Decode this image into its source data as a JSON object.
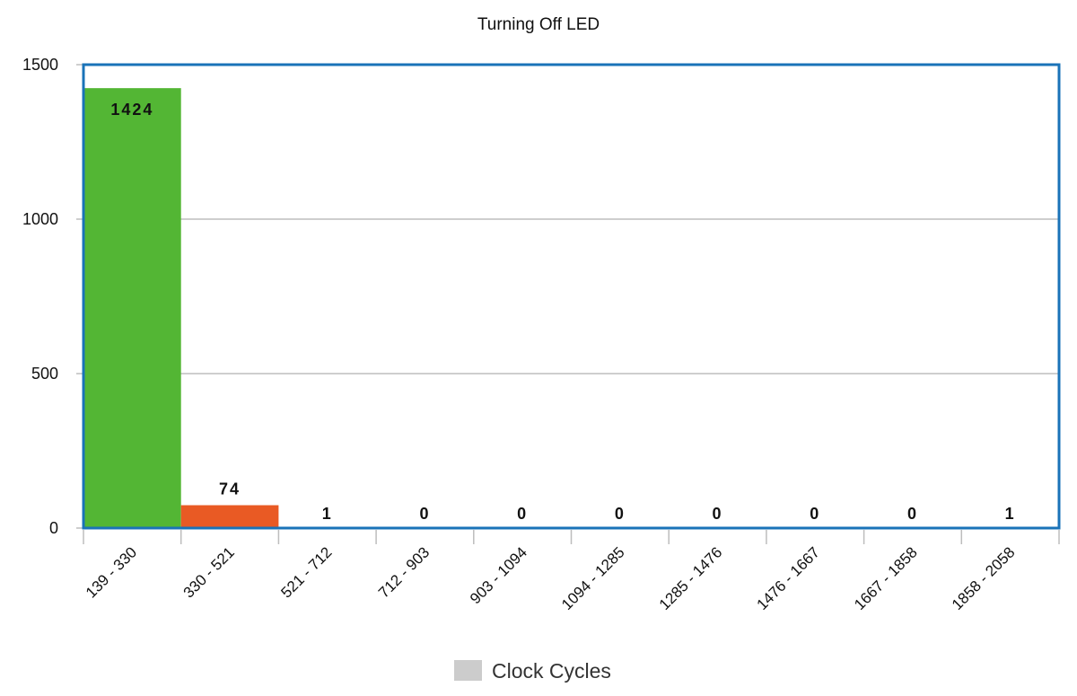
{
  "chart_data": {
    "type": "bar",
    "title": "Turning Off LED",
    "xlabel": "",
    "ylabel": "",
    "ylim": [
      0,
      1500
    ],
    "yticks": [
      0,
      500,
      1000,
      1500
    ],
    "grid": true,
    "legend_position": "bottom",
    "categories": [
      "139 - 330",
      "330 - 521",
      "521 - 712",
      "712 - 903",
      "903 - 1094",
      "1094 - 1285",
      "1285 - 1476",
      "1476 - 1667",
      "1667 - 1858",
      "1858 - 2058"
    ],
    "series": [
      {
        "name": "Clock Cycles",
        "values": [
          1424,
          74,
          1,
          0,
          0,
          0,
          0,
          0,
          0,
          1
        ],
        "colors": [
          "#53b634",
          "#e95a24",
          "#1f6fb5",
          "#1f6fb5",
          "#1f6fb5",
          "#1f6fb5",
          "#1f6fb5",
          "#1f6fb5",
          "#1f6fb5",
          "#1f6fb5"
        ]
      }
    ],
    "legend_swatch_color": "#cccccc",
    "frame_color": "#1a73b8"
  }
}
